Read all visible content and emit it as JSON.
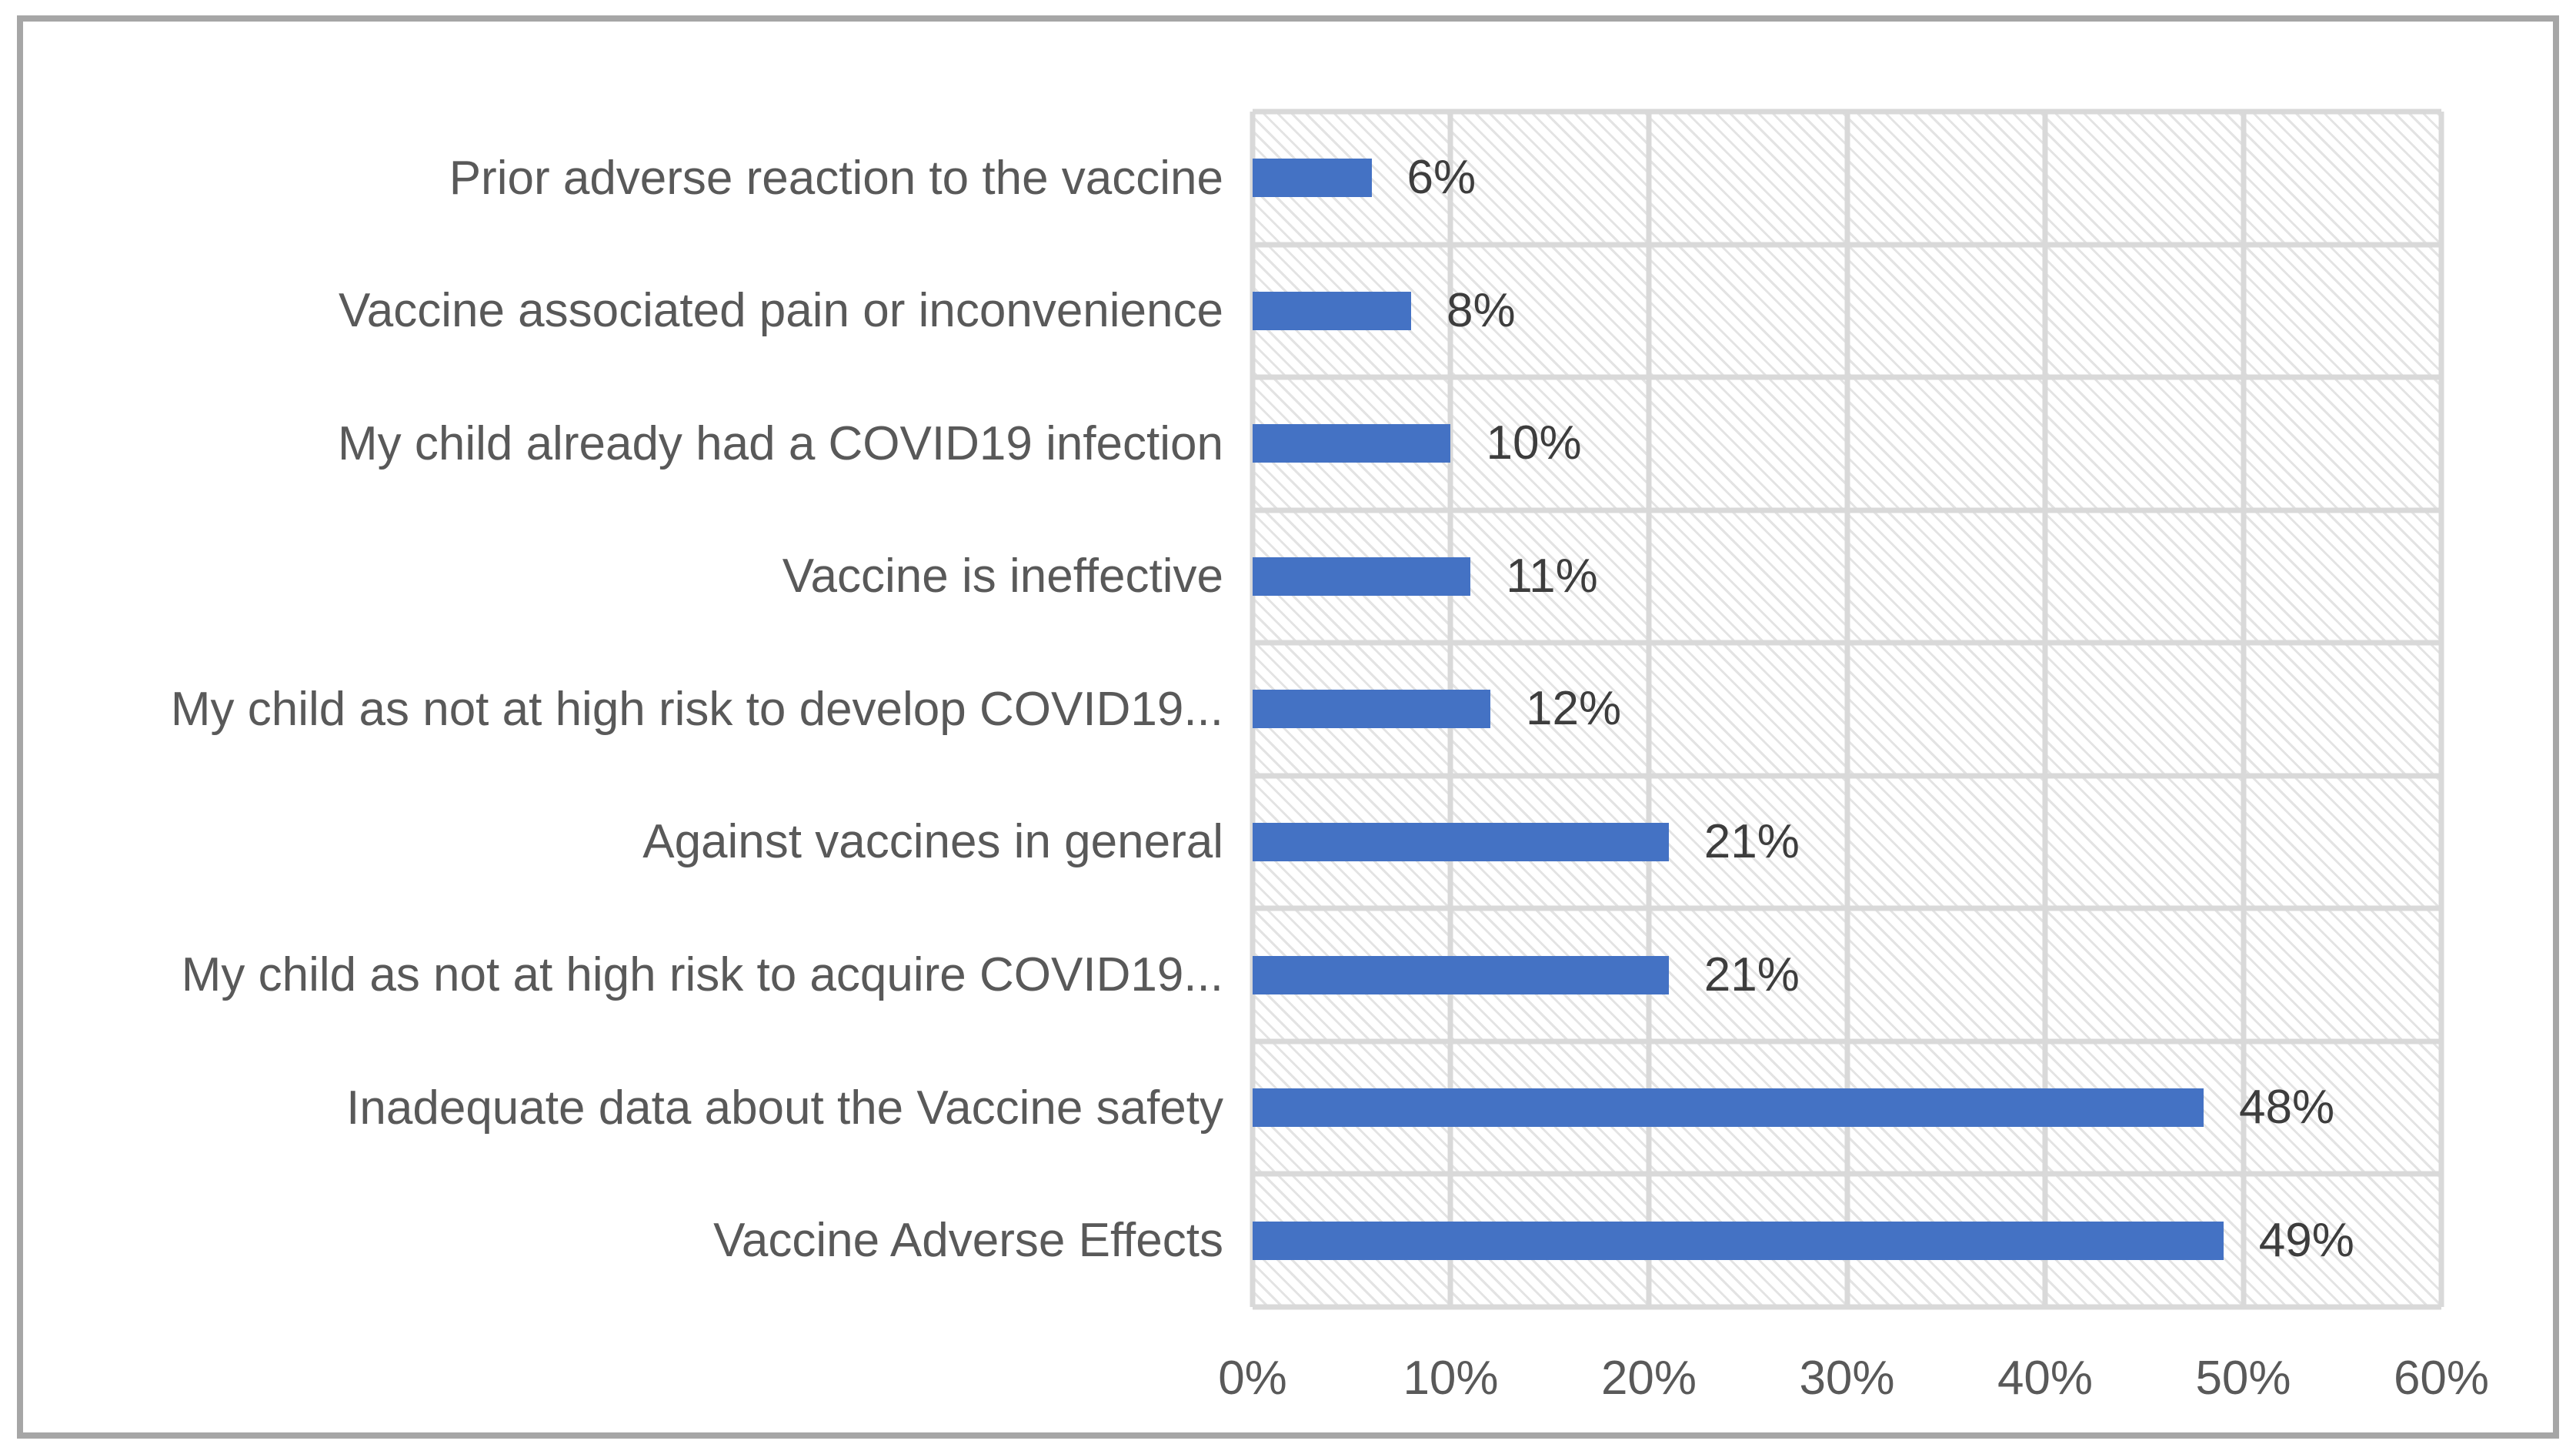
{
  "figure": {
    "background": "#ffffff",
    "border_color": "#a6a6a6"
  },
  "chart_data": {
    "type": "bar",
    "orientation": "horizontal",
    "title": "",
    "xlabel": "",
    "ylabel": "",
    "xlim": [
      0,
      60
    ],
    "x_ticks": [
      "0%",
      "10%",
      "20%",
      "30%",
      "40%",
      "50%",
      "60%"
    ],
    "grid": "vertical major gridlines every 10%, horizontal category separator gridlines, light diagonal hatch pattern fill in plot area",
    "legend": "none",
    "categories": [
      "Prior adverse reaction to the vaccine",
      "Vaccine associated pain or inconvenience",
      "My child already had a COVID19 infection",
      "Vaccine is ineffective",
      "My child as not at high risk to develop COVID19...",
      "Against vaccines in general",
      "My child as not at high risk to acquire COVID19...",
      "Inadequate data about the Vaccine safety",
      "Vaccine Adverse Effects"
    ],
    "values": [
      6,
      8,
      10,
      11,
      12,
      21,
      21,
      48,
      49
    ],
    "data_labels": [
      "6%",
      "8%",
      "10%",
      "11%",
      "12%",
      "21%",
      "21%",
      "48%",
      "49%"
    ],
    "style": {
      "bar_color": "#4472c4",
      "gridline_color": "#d9d9d9",
      "hatch_color": "#e3e3e3",
      "category_label_color": "#595959",
      "data_label_color": "#3d3d3d",
      "axis_label_color": "#595959"
    }
  }
}
